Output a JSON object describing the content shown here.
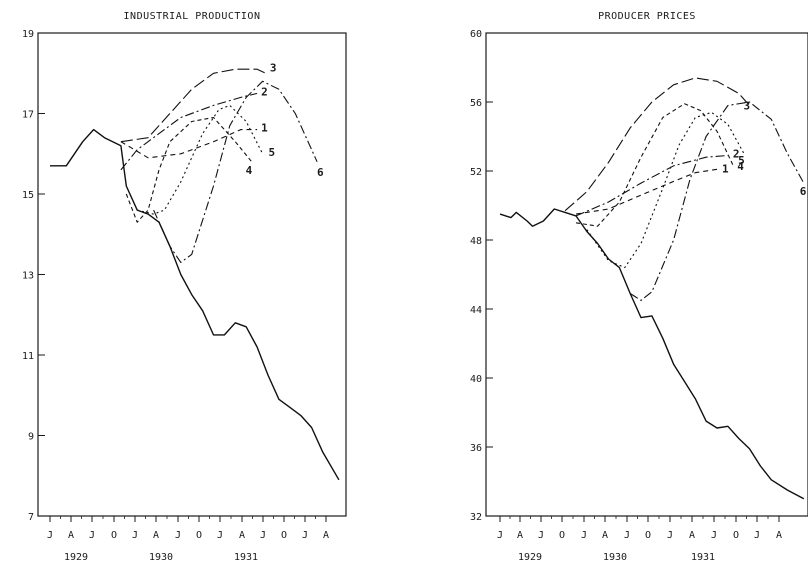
{
  "chart_data": [
    {
      "type": "line",
      "title": "INDUSTRIAL PRODUCTION",
      "ylim": [
        7,
        19
      ],
      "yticks": [
        7,
        9,
        11,
        13,
        15,
        17,
        19
      ],
      "month_labels": [
        "J",
        "A",
        "J",
        "O",
        "J",
        "A",
        "J",
        "O",
        "J",
        "A",
        "J",
        "O",
        "J",
        "A"
      ],
      "year_labels": [
        "1929",
        "1930",
        "1931"
      ],
      "actual": [
        [
          0,
          15.7
        ],
        [
          1.5,
          15.7
        ],
        [
          3,
          16.3
        ],
        [
          4,
          16.6
        ],
        [
          5,
          16.4
        ],
        [
          6.5,
          16.2
        ],
        [
          7,
          15.2
        ],
        [
          8,
          14.6
        ],
        [
          9,
          14.5
        ],
        [
          10,
          14.3
        ],
        [
          11,
          13.7
        ],
        [
          12,
          13.0
        ],
        [
          13,
          12.5
        ],
        [
          14,
          12.1
        ],
        [
          15,
          11.5
        ],
        [
          16,
          11.5
        ],
        [
          17,
          11.8
        ],
        [
          18,
          11.7
        ],
        [
          19,
          11.2
        ],
        [
          20,
          10.5
        ],
        [
          21,
          9.9
        ],
        [
          22,
          9.7
        ],
        [
          23,
          9.5
        ],
        [
          24,
          9.2
        ],
        [
          25,
          8.6
        ],
        [
          26.5,
          7.9
        ]
      ],
      "forecasts": [
        {
          "name": "1",
          "dash": "5,4",
          "points": [
            [
              6.5,
              16.3
            ],
            [
              9,
              15.9
            ],
            [
              12,
              16.0
            ],
            [
              15,
              16.3
            ],
            [
              17.5,
              16.6
            ],
            [
              19,
              16.6
            ]
          ]
        },
        {
          "name": "2",
          "dash": "9,3,2,3",
          "points": [
            [
              6.5,
              15.6
            ],
            [
              8,
              16.1
            ],
            [
              10,
              16.5
            ],
            [
              12,
              16.9
            ],
            [
              15,
              17.2
            ],
            [
              17.5,
              17.4
            ],
            [
              19,
              17.5
            ]
          ]
        },
        {
          "name": "3",
          "dash": "12,4",
          "points": [
            [
              6.5,
              16.3
            ],
            [
              9,
              16.4
            ],
            [
              11,
              17.0
            ],
            [
              13,
              17.6
            ],
            [
              15,
              18.0
            ],
            [
              17,
              18.1
            ],
            [
              19,
              18.1
            ],
            [
              19.8,
              18.0
            ]
          ]
        },
        {
          "name": "4",
          "dash": "4,3",
          "points": [
            [
              7,
              15.0
            ],
            [
              8,
              14.3
            ],
            [
              9,
              14.6
            ],
            [
              10,
              15.6
            ],
            [
              11,
              16.3
            ],
            [
              13,
              16.8
            ],
            [
              15,
              16.9
            ],
            [
              17,
              16.3
            ],
            [
              18.5,
              15.8
            ]
          ]
        },
        {
          "name": "5",
          "dash": "2,3",
          "points": [
            [
              8,
              14.6
            ],
            [
              9.5,
              14.5
            ],
            [
              10.5,
              14.6
            ],
            [
              12,
              15.3
            ],
            [
              14,
              16.5
            ],
            [
              15.5,
              17.1
            ],
            [
              16.5,
              17.2
            ],
            [
              18,
              16.8
            ],
            [
              19.5,
              16.0
            ]
          ]
        },
        {
          "name": "6",
          "dash": "9,3,2,3",
          "points": [
            [
              9.5,
              14.6
            ],
            [
              11,
              13.7
            ],
            [
              12,
              13.3
            ],
            [
              13,
              13.5
            ],
            [
              15,
              15.2
            ],
            [
              16.5,
              16.7
            ],
            [
              18,
              17.4
            ],
            [
              19.5,
              17.8
            ],
            [
              21,
              17.6
            ],
            [
              22.5,
              17.0
            ],
            [
              24.5,
              15.8
            ]
          ]
        }
      ]
    },
    {
      "type": "line",
      "title": "PRODUCER PRICES",
      "ylim": [
        32,
        60
      ],
      "yticks": [
        32,
        36,
        40,
        44,
        48,
        52,
        56,
        60
      ],
      "month_labels": [
        "J",
        "A",
        "J",
        "O",
        "J",
        "A",
        "J",
        "O",
        "J",
        "A",
        "J",
        "O",
        "J",
        "A"
      ],
      "year_labels": [
        "1929",
        "1930",
        "1931"
      ],
      "actual": [
        [
          0,
          49.5
        ],
        [
          1,
          49.3
        ],
        [
          1.5,
          49.6
        ],
        [
          2.5,
          49.1
        ],
        [
          3,
          48.8
        ],
        [
          4,
          49.1
        ],
        [
          5,
          49.8
        ],
        [
          6,
          49.6
        ],
        [
          7,
          49.4
        ],
        [
          8,
          48.5
        ],
        [
          9,
          47.8
        ],
        [
          10,
          46.9
        ],
        [
          11,
          46.4
        ],
        [
          12,
          44.9
        ],
        [
          13,
          43.5
        ],
        [
          14,
          43.6
        ],
        [
          15,
          42.3
        ],
        [
          16,
          40.8
        ],
        [
          17,
          39.8
        ],
        [
          18,
          38.8
        ],
        [
          19,
          37.5
        ],
        [
          20,
          37.1
        ],
        [
          21,
          37.2
        ],
        [
          22,
          36.5
        ],
        [
          23,
          35.9
        ],
        [
          24,
          34.9
        ],
        [
          25,
          34.1
        ],
        [
          26.5,
          33.5
        ],
        [
          28,
          33.0
        ]
      ],
      "forecasts": [
        {
          "name": "1",
          "dash": "5,4",
          "points": [
            [
              7,
              49.5
            ],
            [
              10,
              49.8
            ],
            [
              13,
              50.6
            ],
            [
              16,
              51.4
            ],
            [
              18,
              51.9
            ],
            [
              20,
              52.1
            ]
          ]
        },
        {
          "name": "2",
          "dash": "9,3,2,3",
          "points": [
            [
              7,
              49.4
            ],
            [
              10,
              50.2
            ],
            [
              13,
              51.3
            ],
            [
              16,
              52.3
            ],
            [
              19,
              52.8
            ],
            [
              21,
              52.9
            ]
          ]
        },
        {
          "name": "3",
          "dash": "12,4",
          "points": [
            [
              6,
              49.7
            ],
            [
              8,
              50.8
            ],
            [
              10,
              52.5
            ],
            [
              12,
              54.5
            ],
            [
              14,
              56.0
            ],
            [
              16,
              57.0
            ],
            [
              18,
              57.4
            ],
            [
              20,
              57.2
            ],
            [
              22,
              56.5
            ],
            [
              23,
              55.8
            ]
          ]
        },
        {
          "name": "4",
          "dash": "4,3",
          "points": [
            [
              7,
              49.0
            ],
            [
              9,
              48.8
            ],
            [
              11,
              50.2
            ],
            [
              13,
              52.8
            ],
            [
              15,
              55.1
            ],
            [
              17,
              55.9
            ],
            [
              18.5,
              55.5
            ],
            [
              20,
              54.3
            ],
            [
              21.5,
              52.3
            ]
          ]
        },
        {
          "name": "5",
          "dash": "2,3",
          "points": [
            [
              8,
              48.6
            ],
            [
              10,
              46.8
            ],
            [
              11.5,
              46.4
            ],
            [
              13,
              47.8
            ],
            [
              15,
              51.0
            ],
            [
              16.5,
              53.5
            ],
            [
              18,
              55.1
            ],
            [
              19.5,
              55.4
            ],
            [
              21,
              54.7
            ],
            [
              22.5,
              53.0
            ]
          ]
        },
        {
          "name": "6",
          "dash": "9,3,2,3",
          "points": [
            [
              12,
              44.9
            ],
            [
              13,
              44.5
            ],
            [
              14,
              45.0
            ],
            [
              16,
              48.0
            ],
            [
              17.5,
              51.5
            ],
            [
              19,
              54.0
            ],
            [
              21,
              55.8
            ],
            [
              23,
              56.0
            ],
            [
              25,
              55.0
            ],
            [
              26.5,
              53.0
            ],
            [
              28,
              51.3
            ]
          ]
        }
      ]
    }
  ]
}
